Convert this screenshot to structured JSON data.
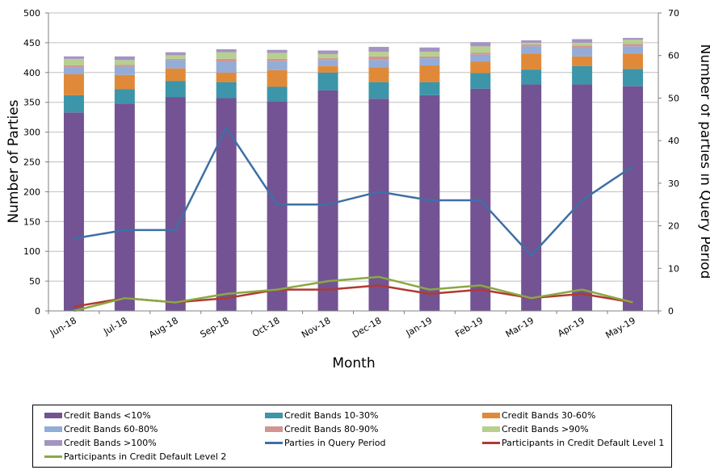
{
  "chart_data": {
    "type": "bar",
    "stacked": true,
    "categories": [
      "Jun-18",
      "Jul-18",
      "Aug-18",
      "Sep-18",
      "Oct-18",
      "Nov-18",
      "Dec-18",
      "Jan-19",
      "Feb-19",
      "Mar-19",
      "Apr-19",
      "May-19"
    ],
    "xlabel": "Month",
    "ylabel": "Number of Parties",
    "y2label": "Number of parties in Query Period",
    "ylim": [
      0,
      500
    ],
    "y2lim": [
      0,
      70
    ],
    "yticks": [
      0,
      50,
      100,
      150,
      200,
      250,
      300,
      350,
      400,
      450,
      500
    ],
    "y2ticks": [
      0,
      10,
      20,
      30,
      40,
      50,
      60,
      70
    ],
    "grid": "horizontal",
    "legend_position": "bottom",
    "series": [
      {
        "name": "Credit Bands <10%",
        "kind": "bar",
        "color": "#735393",
        "values": [
          333,
          348,
          359,
          357,
          352,
          370,
          356,
          362,
          373,
          380,
          380,
          377
        ]
      },
      {
        "name": "Credit Bands 10-30%",
        "kind": "bar",
        "color": "#3c95a9",
        "values": [
          29,
          24,
          27,
          27,
          24,
          30,
          28,
          22,
          26,
          25,
          31,
          29
        ]
      },
      {
        "name": "Credit Bands 30-60%",
        "kind": "bar",
        "color": "#e08a39",
        "values": [
          35,
          24,
          21,
          16,
          28,
          11,
          25,
          28,
          19,
          27,
          16,
          26
        ]
      },
      {
        "name": "Credit Bands 60-80%",
        "kind": "bar",
        "color": "#93acd8",
        "values": [
          12,
          14,
          14,
          18,
          15,
          10,
          12,
          12,
          12,
          12,
          14,
          12
        ]
      },
      {
        "name": "Credit Bands 80-90%",
        "kind": "bar",
        "color": "#d29593",
        "values": [
          3,
          3,
          2,
          5,
          4,
          3,
          6,
          3,
          3,
          3,
          4,
          4
        ]
      },
      {
        "name": "Credit Bands >90%",
        "kind": "bar",
        "color": "#b7cf8f",
        "values": [
          11,
          8,
          6,
          11,
          10,
          7,
          8,
          8,
          11,
          3,
          5,
          7
        ]
      },
      {
        "name": "Credit Bands >100%",
        "kind": "bar",
        "color": "#a493c3",
        "values": [
          4,
          6,
          5,
          5,
          5,
          6,
          8,
          7,
          7,
          4,
          6,
          3
        ]
      },
      {
        "name": "Parties in Query Period",
        "kind": "line",
        "axis": "right",
        "color": "#3f6fa5",
        "values": [
          17,
          19,
          19,
          43,
          25,
          25,
          28,
          26,
          26,
          13,
          26,
          34
        ]
      },
      {
        "name": "Participants in Credit Default Level 1",
        "kind": "line",
        "axis": "right",
        "color": "#b03a32",
        "values": [
          1,
          3,
          2,
          3,
          5,
          5,
          6,
          4,
          5,
          3,
          4,
          2
        ]
      },
      {
        "name": "Participants in Credit Default Level 2",
        "kind": "line",
        "axis": "right",
        "color": "#8aa842",
        "values": [
          0,
          3,
          2,
          4,
          5,
          7,
          8,
          5,
          6,
          3,
          5,
          2
        ]
      }
    ]
  }
}
